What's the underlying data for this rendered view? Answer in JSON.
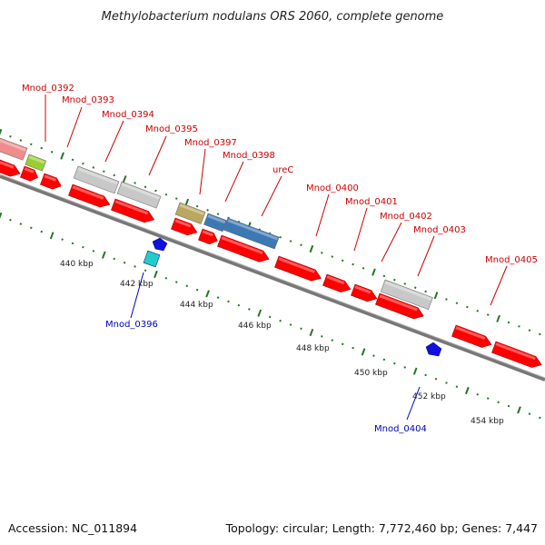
{
  "title": "Methylobacterium nodulans ORS 2060, complete genome",
  "footer": {
    "accession": "Accession: NC_011894",
    "summary": "Topology: circular; Length: 7,772,460 bp; Genes: 7,447"
  },
  "colors": {
    "cds": "#ff0000",
    "rna": "#3c78b4",
    "forward_label": "#cc0000",
    "reverse_label": "#0000bb",
    "tick_dot": "#227722",
    "backbone": "#888888"
  },
  "scale_ticks": [
    "440 kbp",
    "442 kbp",
    "444 kbp",
    "446 kbp",
    "448 kbp",
    "450 kbp",
    "452 kbp",
    "454 kbp"
  ],
  "forward_genes": [
    "Mnod_0392",
    "Mnod_0393",
    "Mnod_0394",
    "Mnod_0395",
    "Mnod_0397",
    "Mnod_0398",
    "ureC",
    "Mnod_0400",
    "Mnod_0401",
    "Mnod_0402",
    "Mnod_0403",
    "Mnod_0405"
  ],
  "reverse_genes": [
    "Mnod_0396",
    "Mnod_0404"
  ]
}
